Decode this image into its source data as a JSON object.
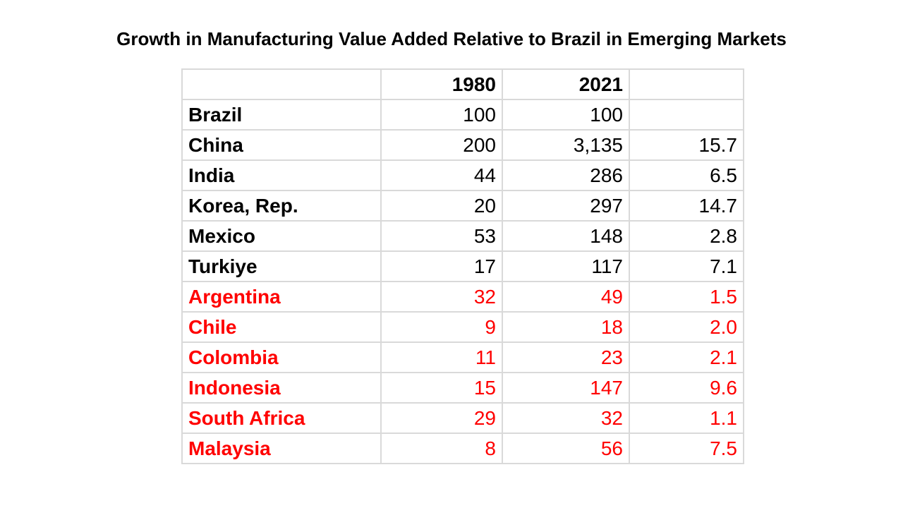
{
  "title": "Growth in Manufacturing Value Added Relative to Brazil in Emerging Markets",
  "colors": {
    "highlight": "#ff0000",
    "text": "#000000",
    "grid": "#d9d9d9"
  },
  "chart_data": {
    "type": "table",
    "title": "Growth in Manufacturing Value Added Relative to Brazil in Emerging Markets",
    "columns": [
      "",
      "1980",
      "2021",
      ""
    ],
    "rows": [
      {
        "country": "Brazil",
        "v1980": "100",
        "v2021": "100",
        "ratio": "",
        "highlight": false
      },
      {
        "country": "China",
        "v1980": "200",
        "v2021": "3,135",
        "ratio": "15.7",
        "highlight": false
      },
      {
        "country": "India",
        "v1980": "44",
        "v2021": "286",
        "ratio": "6.5",
        "highlight": false
      },
      {
        "country": "Korea, Rep.",
        "v1980": "20",
        "v2021": "297",
        "ratio": "14.7",
        "highlight": false
      },
      {
        "country": "Mexico",
        "v1980": "53",
        "v2021": "148",
        "ratio": "2.8",
        "highlight": false
      },
      {
        "country": "Turkiye",
        "v1980": "17",
        "v2021": "117",
        "ratio": "7.1",
        "highlight": false
      },
      {
        "country": "Argentina",
        "v1980": "32",
        "v2021": "49",
        "ratio": "1.5",
        "highlight": true
      },
      {
        "country": "Chile",
        "v1980": "9",
        "v2021": "18",
        "ratio": "2.0",
        "highlight": true
      },
      {
        "country": "Colombia",
        "v1980": "11",
        "v2021": "23",
        "ratio": "2.1",
        "highlight": true
      },
      {
        "country": "Indonesia",
        "v1980": "15",
        "v2021": "147",
        "ratio": "9.6",
        "highlight": true
      },
      {
        "country": "South Africa",
        "v1980": "29",
        "v2021": "32",
        "ratio": "1.1",
        "highlight": true
      },
      {
        "country": "Malaysia",
        "v1980": "8",
        "v2021": "56",
        "ratio": "7.5",
        "highlight": true
      }
    ]
  }
}
